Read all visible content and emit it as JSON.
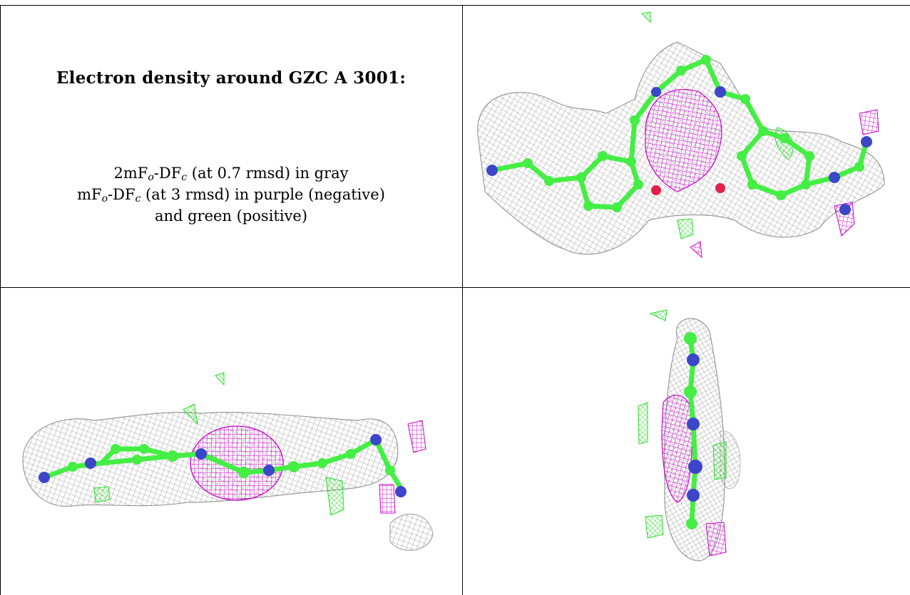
{
  "caption": {
    "title": "Electron density around GZC A 3001:",
    "line1": {
      "prefix": "2mF",
      "sub1": "o",
      "mid": "-DF",
      "sub2": "c",
      "suffix": " (at 0.7 rmsd) in gray"
    },
    "line2": {
      "prefix": "mF",
      "sub1": "o",
      "mid": "-DF",
      "sub2": "c",
      "suffix": " (at 3 rmsd) in purple (negative)"
    },
    "line3": "and green (positive)"
  },
  "colors": {
    "mesh_2fofc": "#8c8c8c",
    "mesh_negative": "#cc00cc",
    "mesh_positive": "#22dd22",
    "carbon": "#44ee44",
    "nitrogen": "#3c46c8",
    "oxygen": "#e0204a"
  },
  "views": [
    "view-top-right",
    "view-bottom-left",
    "view-bottom-right"
  ]
}
